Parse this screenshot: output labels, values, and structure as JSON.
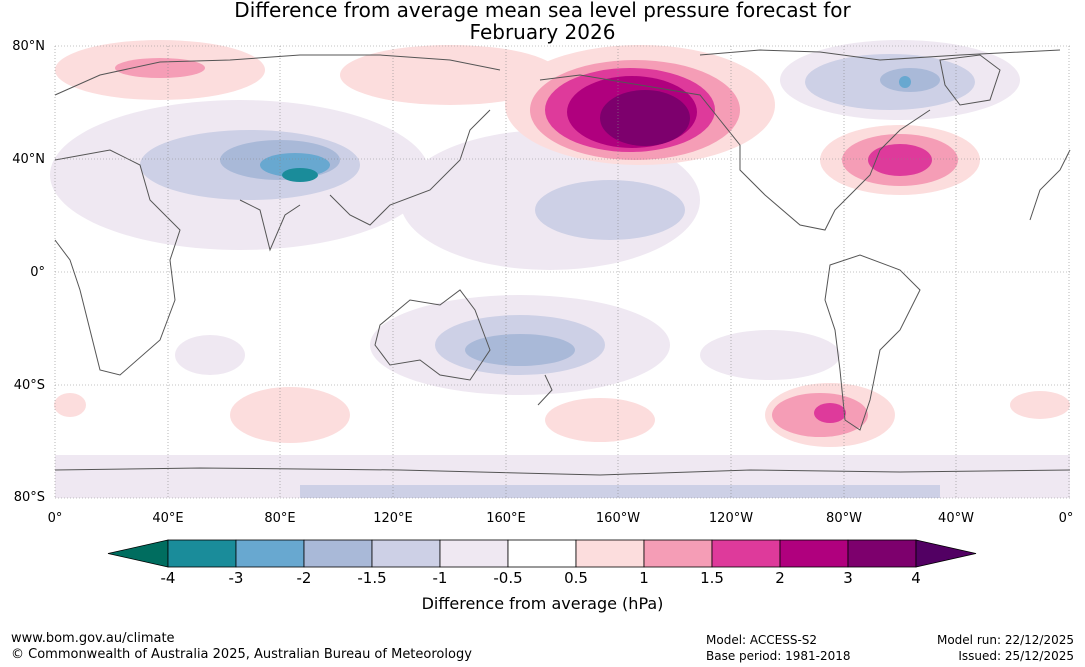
{
  "title_line1": "Difference from average mean sea level pressure forecast for",
  "title_line2": "February 2026",
  "latitude_labels": [
    "80°N",
    "40°N",
    "0°",
    "40°S",
    "80°S"
  ],
  "longitude_labels": [
    "0°",
    "40°E",
    "80°E",
    "120°E",
    "160°E",
    "160°W",
    "120°W",
    "80°W",
    "40°W",
    "0°"
  ],
  "colorbar": {
    "tick_labels": [
      "-4",
      "-3",
      "-2",
      "-1.5",
      "-1",
      "-0.5",
      "0.5",
      "1",
      "1.5",
      "2",
      "3",
      "4"
    ],
    "title": "Difference from average (hPa)",
    "colors": [
      "#006d5f",
      "#1a8c9a",
      "#68a8d0",
      "#a9b9d8",
      "#cdd0e6",
      "#efe8f2",
      "#ffffff",
      "#fcdddd",
      "#f59db6",
      "#de3a9b",
      "#b0007e",
      "#7d006d",
      "#520063"
    ]
  },
  "footer": {
    "website": "www.bom.gov.au/climate",
    "copyright": "© Commonwealth of Australia 2025, Australian Bureau of Meteorology",
    "model": "Model: ACCESS-S2",
    "base_period": "Base period: 1981-2018",
    "model_run": "Model run: 22/12/2025",
    "issued": "Issued: 25/12/2025"
  }
}
